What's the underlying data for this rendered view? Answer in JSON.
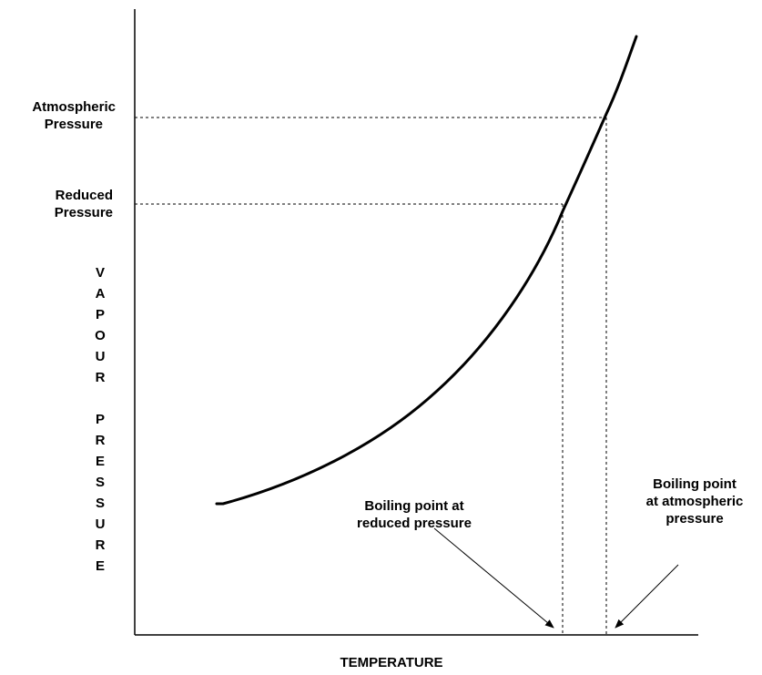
{
  "diagram": {
    "axis_x_label": "TEMPERATURE",
    "axis_y_label_letters": [
      "V",
      "A",
      "P",
      "O",
      "U",
      "R",
      "",
      "P",
      "R",
      "E",
      "S",
      "S",
      "U",
      "R",
      "E"
    ],
    "pressure_levels": [
      {
        "line1": "Atmospheric",
        "line2": "Pressure"
      },
      {
        "line1": "Reduced",
        "line2": "Pressure"
      }
    ],
    "boiling_point_labels": [
      {
        "line1": "Boiling point at",
        "line2": "reduced pressure"
      },
      {
        "line1": "Boiling point",
        "line2": "at atmospheric",
        "line3": "pressure"
      }
    ]
  }
}
